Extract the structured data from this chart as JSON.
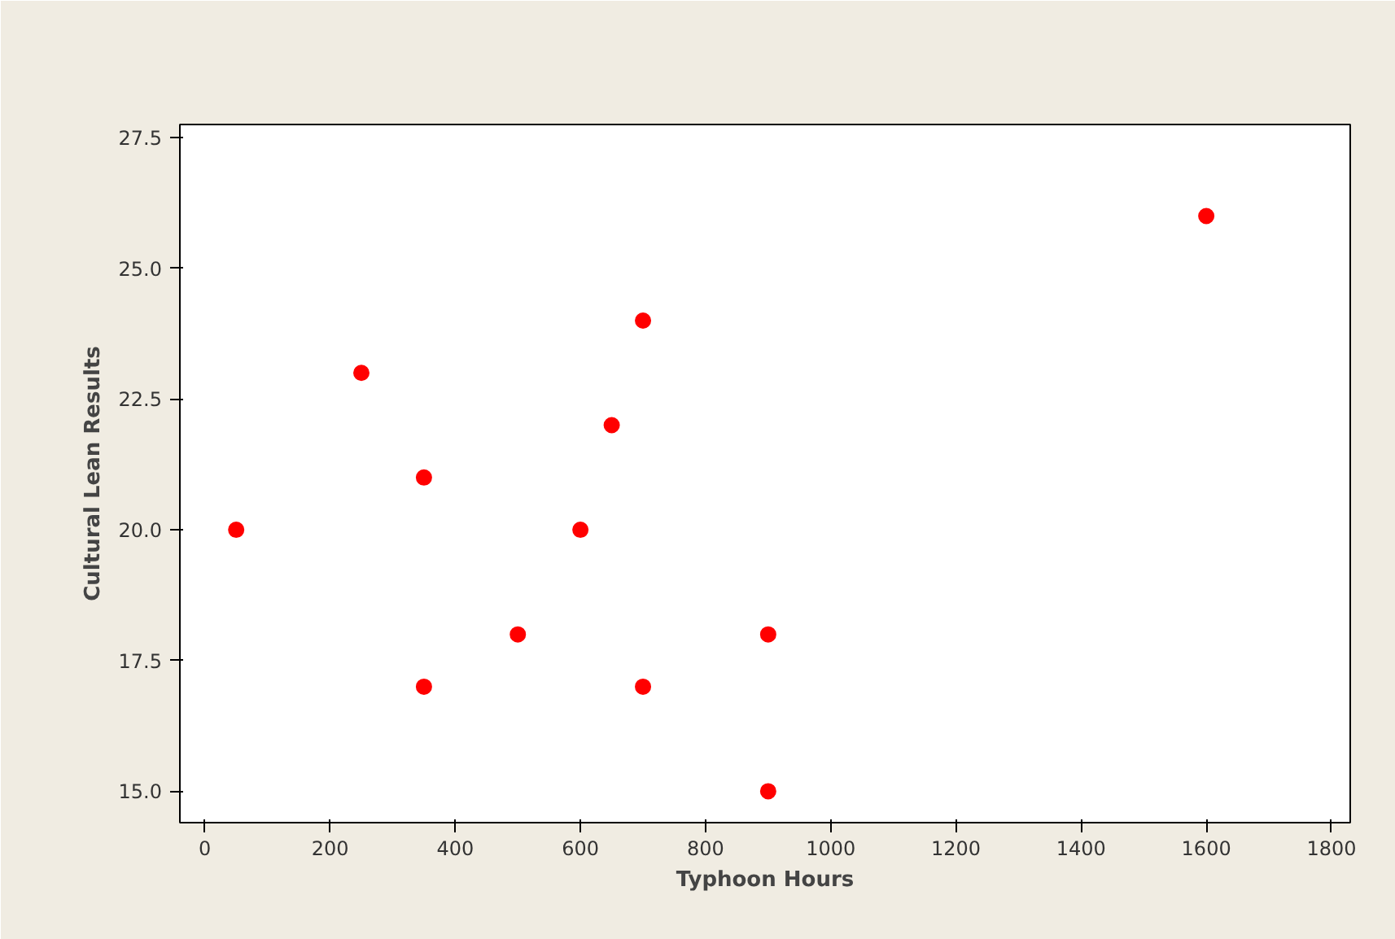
{
  "chart_data": {
    "type": "scatter",
    "xlabel": "Typhoon Hours",
    "ylabel": "Cultural Lean Results",
    "x": [
      50,
      250,
      350,
      350,
      500,
      600,
      650,
      700,
      700,
      900,
      900,
      1600
    ],
    "series": [
      {
        "color": "#ff0000",
        "values": [
          20,
          23,
          21,
          17,
          18,
          20,
          22,
          24,
          17,
          18,
          15,
          26
        ]
      }
    ],
    "xlim": [
      -40,
      1830
    ],
    "ylim": [
      14.4,
      27.75
    ],
    "xticks": [
      0,
      200,
      400,
      600,
      800,
      1000,
      1200,
      1400,
      1600,
      1800
    ],
    "yticks": [
      {
        "value": 15,
        "label": "15.0"
      },
      {
        "value": 17.5,
        "label": "17.5"
      },
      {
        "value": 20,
        "label": "20.0"
      },
      {
        "value": 22.5,
        "label": "22.5"
      },
      {
        "value": 25,
        "label": "25.0"
      },
      {
        "value": 27.5,
        "label": "27.5"
      }
    ],
    "grid": false,
    "marker": "circle"
  }
}
